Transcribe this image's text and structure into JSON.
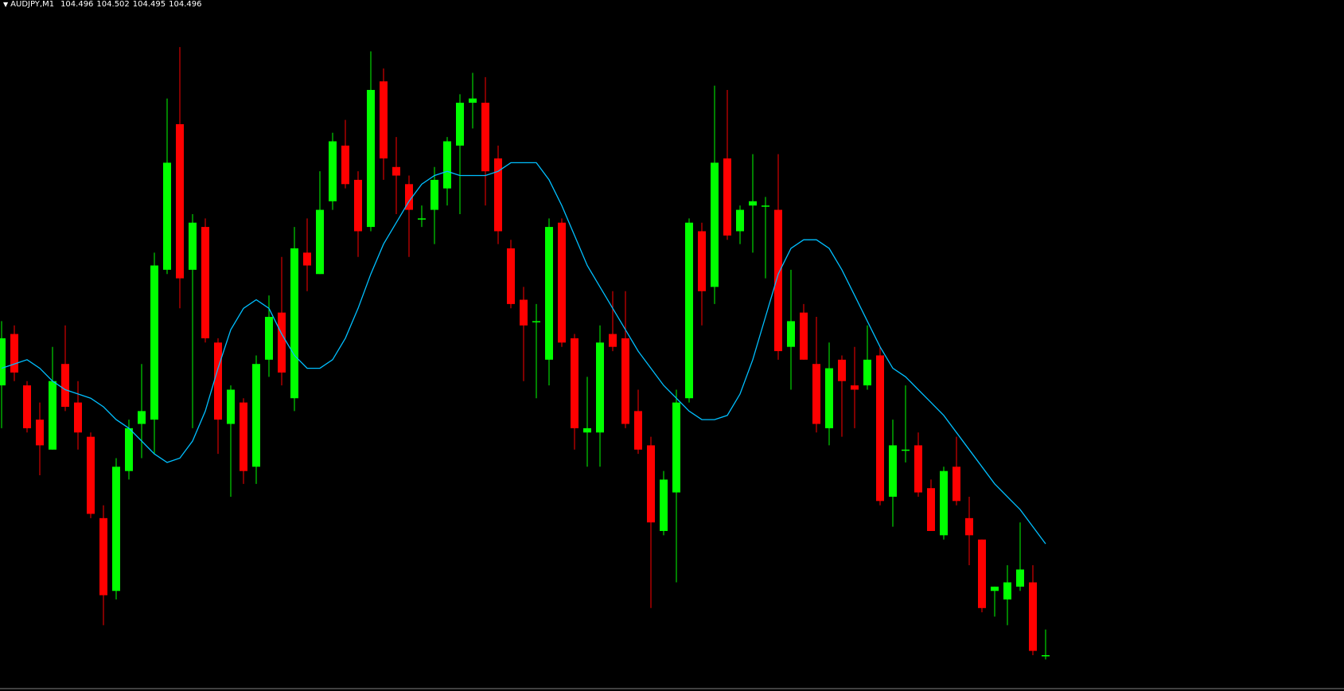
{
  "chart_data": {
    "type": "candlestick",
    "symbol": "AUDJPY,M1",
    "quote": [
      104.496,
      104.502,
      104.495,
      104.496
    ],
    "ylim": [
      104.488,
      104.649
    ],
    "up_color": "#00ff00",
    "down_color": "#ff0000",
    "open": [
      104.559,
      104.571,
      104.559,
      104.551,
      104.544,
      104.564,
      104.555,
      104.547,
      104.528,
      104.511,
      104.539,
      104.55,
      104.551,
      104.586,
      104.62,
      104.586,
      104.596,
      104.569,
      104.55,
      104.555,
      104.54,
      104.565,
      104.576,
      104.556,
      104.59,
      104.585,
      104.602,
      104.615,
      104.607,
      104.596,
      104.63,
      104.61,
      104.606,
      104.598,
      104.6,
      104.605,
      104.615,
      104.625,
      104.625,
      104.612,
      104.591,
      104.579,
      104.574,
      104.565,
      104.597,
      104.57,
      104.548,
      104.548,
      104.571,
      104.57,
      104.553,
      104.545,
      104.525,
      104.534,
      104.556,
      104.595,
      104.582,
      104.612,
      104.595,
      104.601,
      104.601,
      104.6,
      104.568,
      104.576,
      104.564,
      104.549,
      104.565,
      104.559,
      104.559,
      104.566,
      104.533,
      104.544,
      104.545,
      104.535,
      104.524,
      104.54,
      104.528,
      104.523,
      104.511,
      104.509,
      104.512,
      104.513,
      104.496
    ],
    "high": [
      104.574,
      104.573,
      104.56,
      104.555,
      104.568,
      104.573,
      104.56,
      104.548,
      104.531,
      104.542,
      104.551,
      104.564,
      104.59,
      104.626,
      104.638,
      104.599,
      104.598,
      104.57,
      104.559,
      104.556,
      104.566,
      104.58,
      104.589,
      104.596,
      104.598,
      104.609,
      104.618,
      104.621,
      104.609,
      104.637,
      104.633,
      104.617,
      104.608,
      104.601,
      104.61,
      104.617,
      104.627,
      104.632,
      104.631,
      104.615,
      104.593,
      104.582,
      104.578,
      104.598,
      104.598,
      104.571,
      104.561,
      104.573,
      104.581,
      104.581,
      104.558,
      104.547,
      104.539,
      104.558,
      104.598,
      104.597,
      104.629,
      104.628,
      104.601,
      104.613,
      104.603,
      104.613,
      104.586,
      104.578,
      104.575,
      104.569,
      104.566,
      104.568,
      104.573,
      104.568,
      104.551,
      104.559,
      104.548,
      104.537,
      104.54,
      104.547,
      104.533,
      104.523,
      104.512,
      104.517,
      104.527,
      104.517,
      104.502
    ],
    "low": [
      104.549,
      104.56,
      104.548,
      104.538,
      104.544,
      104.553,
      104.544,
      104.528,
      104.503,
      104.509,
      104.537,
      104.542,
      104.543,
      104.585,
      104.577,
      104.549,
      104.569,
      104.543,
      104.533,
      104.536,
      104.536,
      104.561,
      104.559,
      104.553,
      104.581,
      104.585,
      104.6,
      104.605,
      104.589,
      104.595,
      104.607,
      104.599,
      104.589,
      104.596,
      104.592,
      104.601,
      104.599,
      104.619,
      104.601,
      104.592,
      104.577,
      104.56,
      104.556,
      104.559,
      104.568,
      104.544,
      104.54,
      104.54,
      104.567,
      104.549,
      104.543,
      104.507,
      104.524,
      104.513,
      104.555,
      104.573,
      104.578,
      104.593,
      104.592,
      104.59,
      104.584,
      104.565,
      104.558,
      104.565,
      104.548,
      104.545,
      104.547,
      104.549,
      104.558,
      104.531,
      104.526,
      104.541,
      104.533,
      104.525,
      104.523,
      104.531,
      104.517,
      104.506,
      104.505,
      104.503,
      104.511,
      104.496,
      104.495
    ],
    "close": [
      104.57,
      104.562,
      104.549,
      104.545,
      104.56,
      104.554,
      104.548,
      104.529,
      104.51,
      104.54,
      104.549,
      104.553,
      104.587,
      104.611,
      104.584,
      104.597,
      104.57,
      104.551,
      104.558,
      104.539,
      104.564,
      104.575,
      104.562,
      104.591,
      104.587,
      104.6,
      104.616,
      104.606,
      104.595,
      104.628,
      104.612,
      104.608,
      104.6,
      104.598,
      104.607,
      104.616,
      104.625,
      104.626,
      104.609,
      104.595,
      104.578,
      104.573,
      104.574,
      104.596,
      104.569,
      104.549,
      104.549,
      104.569,
      104.568,
      104.55,
      104.544,
      104.527,
      104.537,
      104.555,
      104.597,
      104.581,
      104.611,
      104.594,
      104.6,
      104.602,
      104.601,
      104.567,
      104.574,
      104.565,
      104.55,
      104.563,
      104.56,
      104.558,
      104.565,
      104.532,
      104.545,
      104.544,
      104.534,
      104.525,
      104.539,
      104.532,
      104.524,
      104.507,
      104.512,
      104.513,
      104.516,
      104.497,
      104.496
    ],
    "ma": {
      "color": "#00bfff",
      "values": [
        104.563,
        104.564,
        104.565,
        104.563,
        104.56,
        104.558,
        104.557,
        104.556,
        104.554,
        104.551,
        104.549,
        104.546,
        104.543,
        104.541,
        104.542,
        104.546,
        104.553,
        104.563,
        104.572,
        104.577,
        104.579,
        104.577,
        104.571,
        104.566,
        104.563,
        104.563,
        104.565,
        104.57,
        104.577,
        104.585,
        104.592,
        104.597,
        104.602,
        104.606,
        104.608,
        104.609,
        104.608,
        104.608,
        104.608,
        104.609,
        104.611,
        104.611,
        104.611,
        104.607,
        104.601,
        104.594,
        104.587,
        104.582,
        104.577,
        104.572,
        104.567,
        104.563,
        104.559,
        104.556,
        104.553,
        104.551,
        104.551,
        104.552,
        104.557,
        104.565,
        104.575,
        104.585,
        104.591,
        104.593,
        104.593,
        104.591,
        104.586,
        104.58,
        104.574,
        104.568,
        104.563,
        104.561,
        104.558,
        104.555,
        104.552,
        104.548,
        104.544,
        104.54,
        104.536,
        104.533,
        104.53,
        104.526,
        104.522
      ]
    }
  }
}
